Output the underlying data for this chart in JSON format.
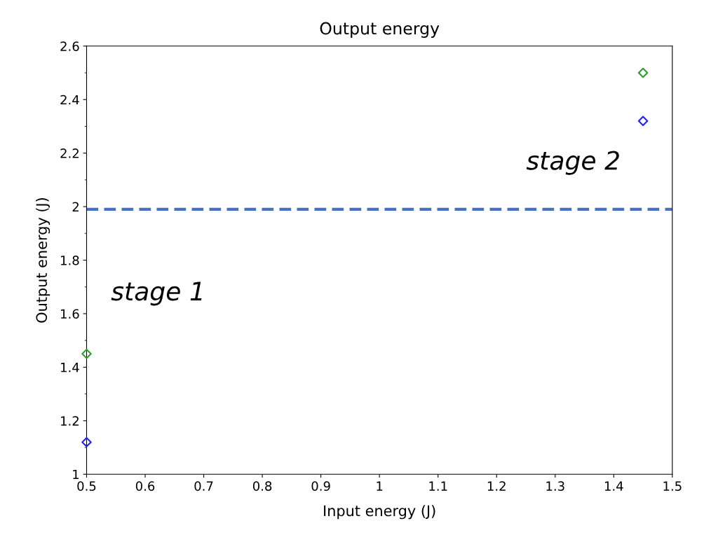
{
  "chart_data": {
    "type": "scatter",
    "title": "Output energy",
    "xlabel": "Input energy (J)",
    "ylabel": "Output energy (J)",
    "marker": "diamond",
    "grid": false,
    "legend": false,
    "x": [
      0.5,
      1.45
    ],
    "series": [
      {
        "color": "#2ca02c",
        "values": [
          1.45,
          2.5
        ]
      },
      {
        "color": "#1f1fff",
        "values": [
          1.12,
          2.32
        ]
      }
    ],
    "xlim": [
      0.5,
      1.5
    ],
    "xticks": [
      0.5,
      0.6,
      0.7,
      0.8,
      0.9,
      1,
      1.1,
      1.2,
      1.3,
      1.4,
      1.5
    ],
    "ylim": [
      1,
      2.6
    ],
    "yticks": [
      1,
      1.2,
      1.4,
      1.6,
      1.8,
      2,
      2.2,
      2.4,
      2.6
    ],
    "ref_lines": [
      {
        "axis": "y",
        "value": 1.99,
        "color": "#4472c4",
        "line_style": "dashed"
      }
    ],
    "annotations": [
      {
        "text": "stage 1",
        "x": 0.5,
        "y": 1.45
      },
      {
        "text": "stage 2",
        "x": 1.45,
        "y": 2.32
      }
    ]
  }
}
